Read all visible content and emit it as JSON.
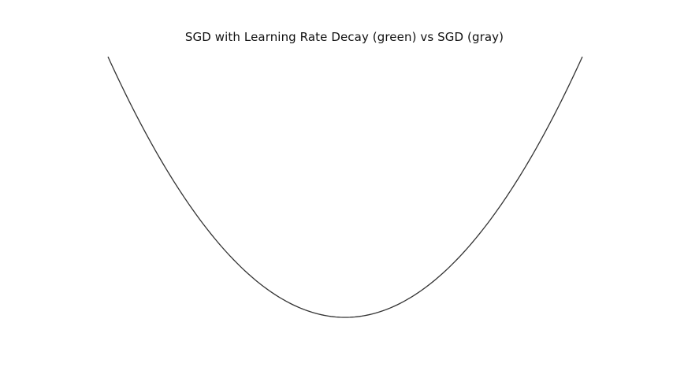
{
  "chart_data": {
    "type": "line",
    "title": "SGD with Learning Rate Decay (green) vs SGD (gray)",
    "xlabel": "",
    "ylabel": "",
    "xlim": [
      -1,
      1
    ],
    "ylim": [
      0,
      1
    ],
    "grid": false,
    "axes_visible": false,
    "series": [
      {
        "function": "x^2",
        "color": "#333333",
        "x": [
          -1,
          -0.9,
          -0.8,
          -0.7,
          -0.6,
          -0.5,
          -0.4,
          -0.3,
          -0.2,
          -0.1,
          0,
          0.1,
          0.2,
          0.3,
          0.4,
          0.5,
          0.6,
          0.7,
          0.8,
          0.9,
          1
        ],
        "y": [
          1,
          0.81,
          0.64,
          0.49,
          0.36,
          0.25,
          0.16,
          0.09,
          0.04,
          0.01,
          0,
          0.01,
          0.04,
          0.09,
          0.16,
          0.25,
          0.36,
          0.49,
          0.64,
          0.81,
          1
        ]
      }
    ]
  }
}
